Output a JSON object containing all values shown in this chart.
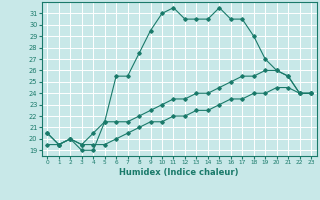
{
  "xlabel": "Humidex (Indice chaleur)",
  "bg_color": "#c8e8e8",
  "grid_color": "#ffffff",
  "line_color": "#1a7a6a",
  "xlim": [
    -0.5,
    23.5
  ],
  "ylim": [
    18.5,
    32.0
  ],
  "xticks": [
    0,
    1,
    2,
    3,
    4,
    5,
    6,
    7,
    8,
    9,
    10,
    11,
    12,
    13,
    14,
    15,
    16,
    17,
    18,
    19,
    20,
    21,
    22,
    23
  ],
  "yticks": [
    19,
    20,
    21,
    22,
    23,
    24,
    25,
    26,
    27,
    28,
    29,
    30,
    31
  ],
  "curve1_x": [
    0,
    1,
    2,
    3,
    4,
    5,
    6,
    7,
    8,
    9,
    10,
    11,
    12,
    13,
    14,
    15,
    16,
    17,
    18,
    19,
    20,
    21,
    22,
    23
  ],
  "curve1_y": [
    20.5,
    19.5,
    20.0,
    19.0,
    19.0,
    21.5,
    25.5,
    25.5,
    27.5,
    29.5,
    31.0,
    31.5,
    30.5,
    30.5,
    30.5,
    31.5,
    30.5,
    30.5,
    29.0,
    27.0,
    26.0,
    25.5,
    24.0,
    24.0
  ],
  "curve2_x": [
    0,
    1,
    2,
    3,
    4,
    5,
    6,
    7,
    8,
    9,
    10,
    11,
    12,
    13,
    14,
    15,
    16,
    17,
    18,
    19,
    20,
    21,
    22,
    23
  ],
  "curve2_y": [
    20.5,
    19.5,
    20.0,
    19.5,
    20.5,
    21.5,
    21.5,
    21.5,
    22.0,
    22.5,
    23.0,
    23.5,
    23.5,
    24.0,
    24.0,
    24.5,
    25.0,
    25.5,
    25.5,
    26.0,
    26.0,
    25.5,
    24.0,
    24.0
  ],
  "curve3_x": [
    0,
    1,
    2,
    3,
    4,
    5,
    6,
    7,
    8,
    9,
    10,
    11,
    12,
    13,
    14,
    15,
    16,
    17,
    18,
    19,
    20,
    21,
    22,
    23
  ],
  "curve3_y": [
    19.5,
    19.5,
    20.0,
    19.5,
    19.5,
    19.5,
    20.0,
    20.5,
    21.0,
    21.5,
    21.5,
    22.0,
    22.0,
    22.5,
    22.5,
    23.0,
    23.5,
    23.5,
    24.0,
    24.0,
    24.5,
    24.5,
    24.0,
    24.0
  ]
}
